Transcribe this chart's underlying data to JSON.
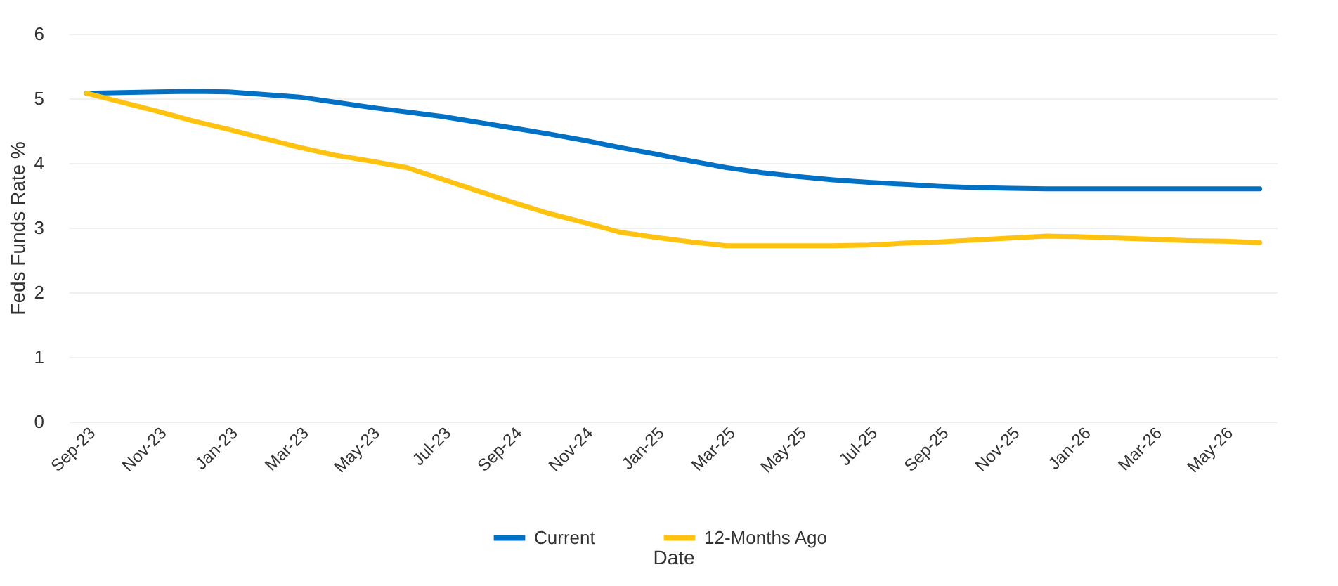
{
  "chart_data": {
    "type": "line",
    "ylabel": "Feds Funds Rate %",
    "xlabel": "Date",
    "categories": [
      "Sep-23",
      null,
      "Nov-23",
      null,
      "Jan-23",
      null,
      "Mar-23",
      null,
      "May-23",
      null,
      "Jul-23",
      null,
      "Sep-24",
      null,
      "Nov-24",
      null,
      "Jan-25",
      null,
      "Mar-25",
      null,
      "May-25",
      null,
      "Jul-25",
      null,
      "Sep-25",
      null,
      "Nov-25",
      null,
      "Jan-26",
      null,
      "Mar-26",
      null,
      "May-26",
      null
    ],
    "series": [
      {
        "name": "Current",
        "color": "#0071c5",
        "values": [
          5.08,
          5.09,
          5.1,
          5.11,
          5.1,
          5.06,
          5.02,
          4.94,
          4.86,
          4.79,
          4.72,
          4.63,
          4.54,
          4.45,
          4.35,
          4.24,
          4.14,
          4.03,
          3.93,
          3.85,
          3.79,
          3.74,
          3.7,
          3.67,
          3.64,
          3.62,
          3.61,
          3.6,
          3.6,
          3.6,
          3.6,
          3.6,
          3.6,
          3.6
        ]
      },
      {
        "name": "12-Months Ago",
        "color": "#ffc20e",
        "values": [
          5.08,
          4.94,
          4.8,
          4.65,
          4.52,
          4.38,
          4.24,
          4.12,
          4.03,
          3.93,
          3.75,
          3.57,
          3.39,
          3.22,
          3.08,
          2.93,
          2.85,
          2.78,
          2.72,
          2.72,
          2.72,
          2.72,
          2.73,
          2.76,
          2.78,
          2.81,
          2.84,
          2.87,
          2.86,
          2.84,
          2.82,
          2.8,
          2.79,
          2.77
        ]
      }
    ],
    "ylim": [
      0,
      6
    ],
    "yticks": [
      0,
      1,
      2,
      3,
      4,
      5,
      6
    ],
    "grid": "y",
    "legend": "bottom",
    "marker": "none",
    "line_style": "solid"
  }
}
